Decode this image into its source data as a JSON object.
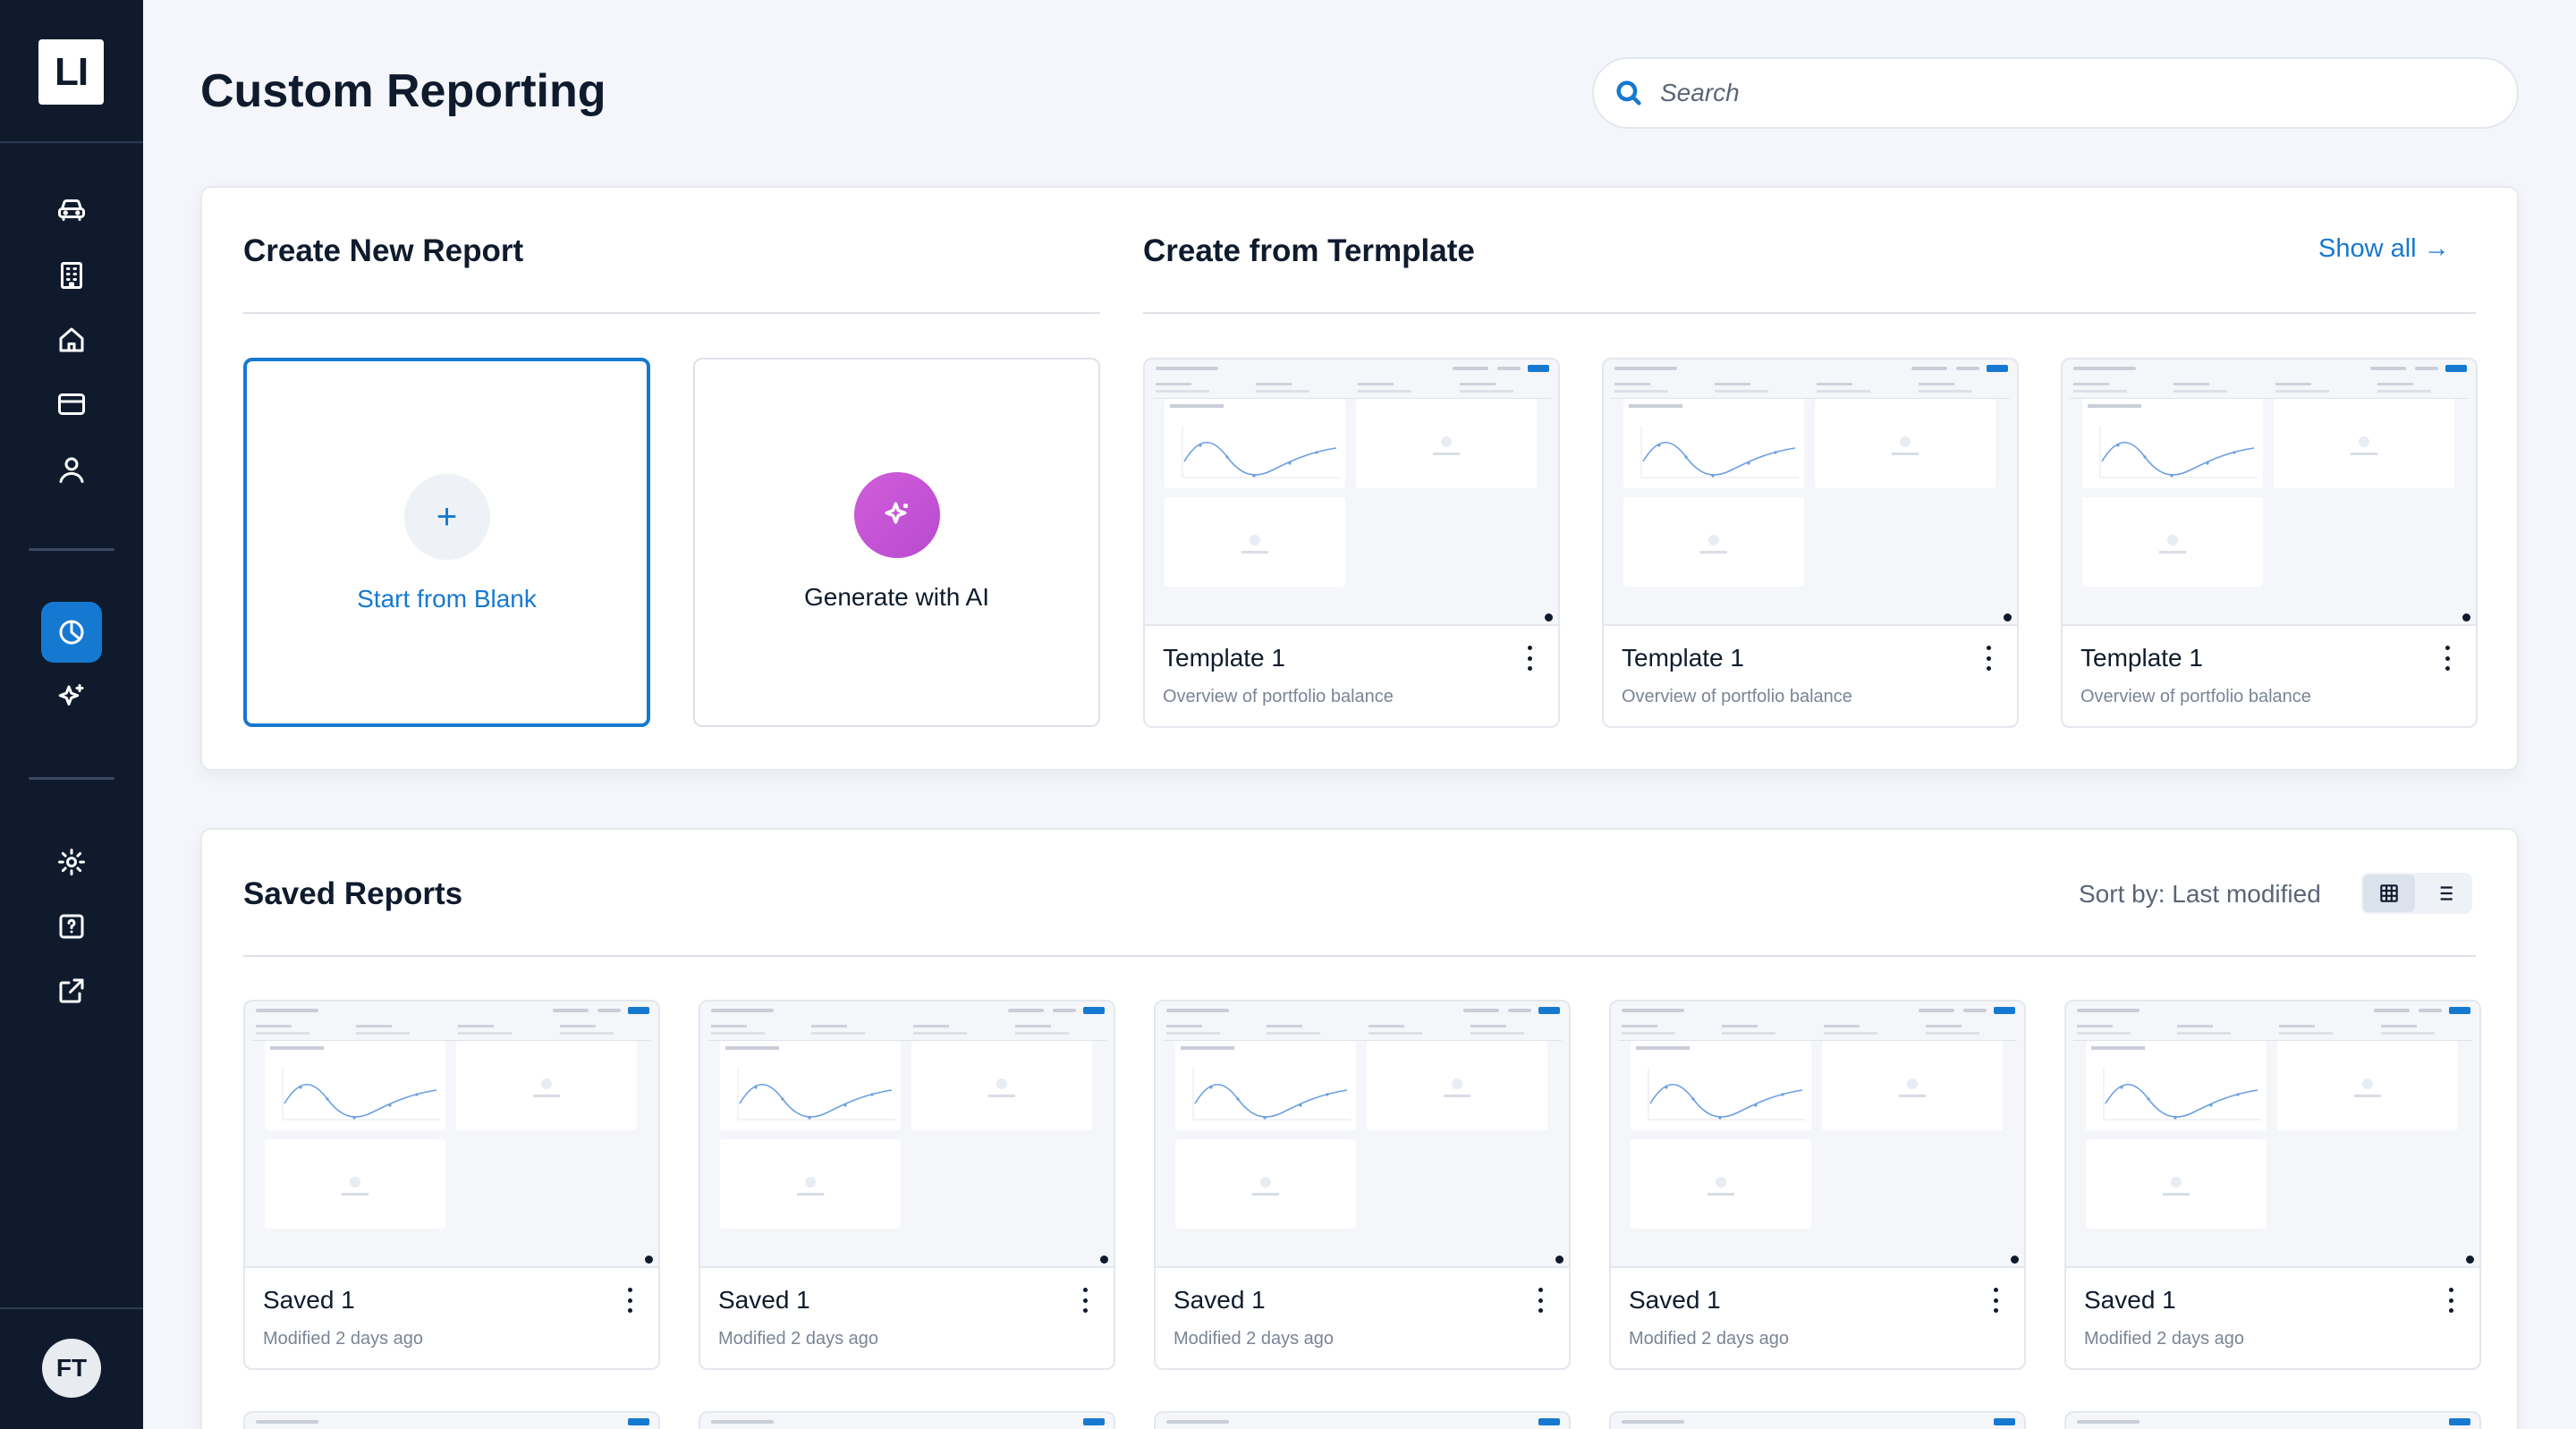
{
  "app": {
    "logo": "LI",
    "user_initials": "FT"
  },
  "colors": {
    "sidebar": "#0f1b2d",
    "accent": "#1679d1",
    "ai_gradient": "#d15dd9"
  },
  "sidebar": {
    "items": [
      {
        "icon": "car-icon"
      },
      {
        "icon": "building-icon"
      },
      {
        "icon": "home-icon"
      },
      {
        "icon": "credit-card-icon"
      },
      {
        "icon": "user-icon"
      },
      {
        "icon": "pie-chart-icon",
        "active": true
      },
      {
        "icon": "sparkle-icon"
      },
      {
        "icon": "gear-icon"
      },
      {
        "icon": "help-icon"
      },
      {
        "icon": "external-link-icon"
      }
    ]
  },
  "header": {
    "title": "Custom Reporting",
    "search_placeholder": "Search"
  },
  "create": {
    "title": "Create New Report",
    "blank_label": "Start from Blank",
    "ai_label": "Generate with AI"
  },
  "templates": {
    "title": "Create from Termplate",
    "show_all": "Show all →",
    "items": [
      {
        "name": "Template 1",
        "desc": "Overview of portfolio balance"
      },
      {
        "name": "Template 1",
        "desc": "Overview of portfolio balance"
      },
      {
        "name": "Template 1",
        "desc": "Overview of portfolio balance"
      }
    ]
  },
  "saved": {
    "title": "Saved Reports",
    "sort_label": "Sort by: Last modified",
    "view_mode": "grid",
    "items": [
      {
        "name": "Saved 1",
        "modified": "Modified 2 days ago"
      },
      {
        "name": "Saved 1",
        "modified": "Modified 2 days ago"
      },
      {
        "name": "Saved 1",
        "modified": "Modified 2 days ago"
      },
      {
        "name": "Saved 1",
        "modified": "Modified 2 days ago"
      },
      {
        "name": "Saved 1",
        "modified": "Modified 2 days ago"
      }
    ]
  }
}
